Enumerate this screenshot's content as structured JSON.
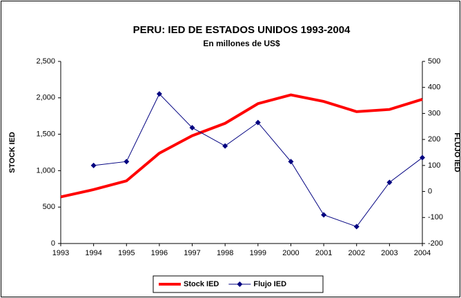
{
  "chart_data": {
    "type": "line",
    "title": "PERU: IED  DE ESTADOS UNIDOS 1993-2004",
    "subtitle": "En millones de US$",
    "ylabel": "STOCK IED",
    "y2label": "FLUJO IED",
    "x": [
      1993,
      1994,
      1995,
      1996,
      1997,
      1998,
      1999,
      2000,
      2001,
      2002,
      2003,
      2004
    ],
    "xlim": [
      1993,
      2004
    ],
    "xticks": [
      1993,
      1994,
      1995,
      1996,
      1997,
      1998,
      1999,
      2000,
      2001,
      2002,
      2003,
      2004
    ],
    "ylim": [
      0,
      2500
    ],
    "yticks": [
      0,
      {
        "value": 500,
        "label": "500"
      },
      {
        "value": 1000,
        "label": "1,000"
      },
      {
        "value": 1500,
        "label": "1,500"
      },
      {
        "value": 2000,
        "label": "2,000"
      },
      {
        "value": 2500,
        "label": "2,500"
      }
    ],
    "y2lim": [
      -200,
      500
    ],
    "y2ticks": [
      -200,
      -100,
      0,
      100,
      200,
      300,
      400,
      500
    ],
    "legend": "bottom",
    "series": [
      {
        "name": "Stock IED",
        "color": "#ff0000",
        "values": [
          640,
          740,
          860,
          1240,
          1480,
          1650,
          1920,
          2040,
          1950,
          1810,
          1840,
          1980
        ]
      },
      {
        "name": "Flujo IED",
        "color": "#000080",
        "axis": "y2",
        "marker": "diamond",
        "values": [
          null,
          100,
          115,
          375,
          245,
          175,
          265,
          115,
          -90,
          -135,
          35,
          130
        ]
      }
    ]
  }
}
